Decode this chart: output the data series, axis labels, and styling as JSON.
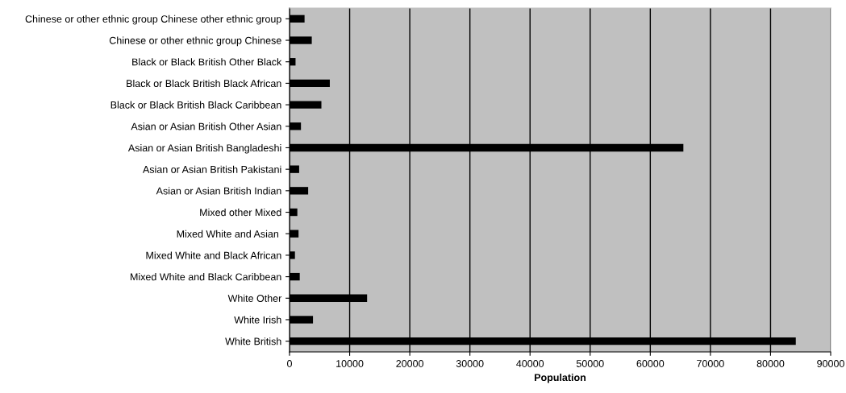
{
  "chart_data": {
    "type": "bar",
    "orientation": "horizontal",
    "xlabel": "Population",
    "categories": [
      "Chinese or other ethnic group Chinese other ethnic group",
      "Chinese or other ethnic group Chinese",
      "Black or Black British Other Black",
      "Black or Black British Black African",
      "Black or Black British Black Caribbean",
      "Asian or Asian British Other Asian",
      "Asian or Asian British Bangladeshi",
      "Asian or Asian British Pakistani",
      "Asian or Asian British Indian",
      "Mixed other Mixed",
      "Mixed White and Asian ",
      "Mixed White and Black African",
      "Mixed White and Black Caribbean",
      "White Other",
      "White Irish",
      "White British"
    ],
    "values": [
      2500,
      3700,
      1000,
      6700,
      5300,
      1900,
      65500,
      1600,
      3100,
      1300,
      1500,
      900,
      1700,
      12900,
      3900,
      84200
    ],
    "color": "#000000",
    "xlim": [
      0,
      90000
    ],
    "xticks": [
      0,
      10000,
      20000,
      30000,
      40000,
      50000,
      60000,
      70000,
      80000,
      90000
    ],
    "grid": "x",
    "legend": false
  }
}
